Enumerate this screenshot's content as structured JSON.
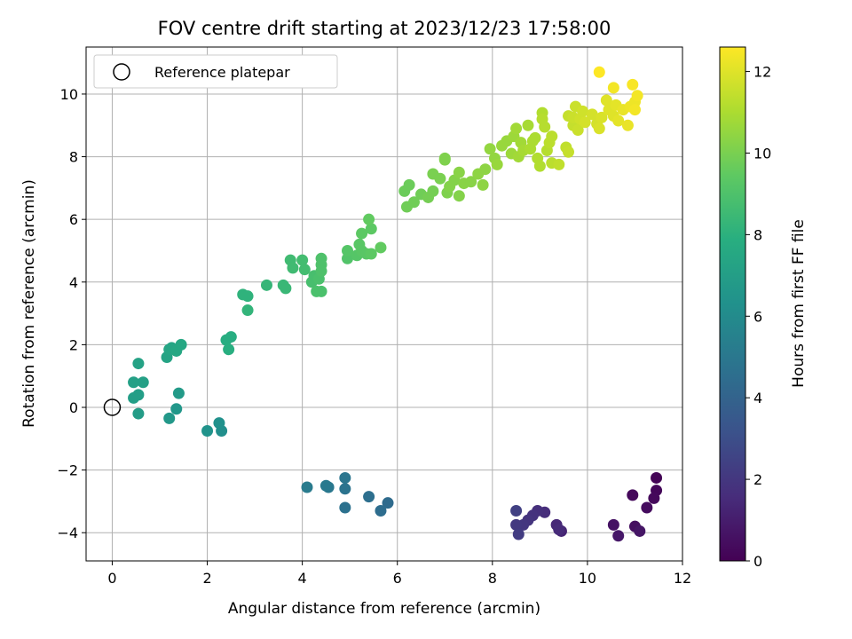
{
  "chart_data": {
    "type": "scatter",
    "title": "FOV centre drift starting at 2023/12/23 17:58:00",
    "xlabel": "Angular distance from reference (arcmin)",
    "ylabel": "Rotation from reference (arcmin)",
    "xlim": [
      -0.55,
      12.0
    ],
    "ylim": [
      -4.9,
      11.5
    ],
    "xticks": [
      0,
      2,
      4,
      6,
      8,
      10,
      12
    ],
    "yticks": [
      -4,
      -2,
      0,
      2,
      4,
      6,
      8,
      10
    ],
    "grid": true,
    "legend": {
      "placement": "top-left",
      "entries": [
        "Reference platepar"
      ]
    },
    "reference_point": {
      "x": 0,
      "y": 0
    },
    "colorbar": {
      "label": "Hours from first FF file",
      "colormap": "viridis",
      "range": [
        0,
        12.6
      ],
      "ticks": [
        0,
        2,
        4,
        6,
        8,
        10,
        12
      ]
    },
    "series": [
      {
        "values": [
          {
            "x": 10.95,
            "y": -2.8,
            "c": 0.3
          },
          {
            "x": 11.45,
            "y": -2.25,
            "c": 0.1
          },
          {
            "x": 11.45,
            "y": -2.65,
            "c": 0.2
          },
          {
            "x": 11.4,
            "y": -2.9,
            "c": 0.3
          },
          {
            "x": 11.25,
            "y": -3.2,
            "c": 0.4
          },
          {
            "x": 11.0,
            "y": -3.8,
            "c": 0.5
          },
          {
            "x": 10.55,
            "y": -3.75,
            "c": 0.6
          },
          {
            "x": 11.1,
            "y": -3.95,
            "c": 0.7
          },
          {
            "x": 10.65,
            "y": -4.1,
            "c": 0.8
          },
          {
            "x": 9.45,
            "y": -3.95,
            "c": 1.3
          },
          {
            "x": 9.35,
            "y": -3.75,
            "c": 1.4
          },
          {
            "x": 9.4,
            "y": -3.9,
            "c": 1.5
          },
          {
            "x": 9.1,
            "y": -3.35,
            "c": 1.6
          },
          {
            "x": 8.95,
            "y": -3.3,
            "c": 1.7
          },
          {
            "x": 8.85,
            "y": -3.45,
            "c": 1.8
          },
          {
            "x": 8.75,
            "y": -3.6,
            "c": 1.9
          },
          {
            "x": 8.65,
            "y": -3.75,
            "c": 2.0
          },
          {
            "x": 8.5,
            "y": -3.75,
            "c": 2.1
          },
          {
            "x": 8.55,
            "y": -4.05,
            "c": 2.2
          },
          {
            "x": 8.5,
            "y": -3.3,
            "c": 2.4
          },
          {
            "x": 5.8,
            "y": -3.05,
            "c": 4.4
          },
          {
            "x": 5.65,
            "y": -3.3,
            "c": 4.5
          },
          {
            "x": 5.4,
            "y": -2.85,
            "c": 4.6
          },
          {
            "x": 4.9,
            "y": -3.2,
            "c": 4.7
          },
          {
            "x": 4.9,
            "y": -2.6,
            "c": 4.8
          },
          {
            "x": 4.9,
            "y": -2.25,
            "c": 4.9
          },
          {
            "x": 4.55,
            "y": -2.55,
            "c": 5.0
          },
          {
            "x": 4.5,
            "y": -2.5,
            "c": 5.1
          },
          {
            "x": 4.1,
            "y": -2.55,
            "c": 5.2
          },
          {
            "x": 2.3,
            "y": -0.75,
            "c": 6.2
          },
          {
            "x": 2.25,
            "y": -0.5,
            "c": 6.3
          },
          {
            "x": 2.0,
            "y": -0.75,
            "c": 6.4
          },
          {
            "x": 1.35,
            "y": -0.05,
            "c": 6.6
          },
          {
            "x": 1.2,
            "y": -0.35,
            "c": 6.7
          },
          {
            "x": 1.4,
            "y": 0.45,
            "c": 6.8
          },
          {
            "x": 0.55,
            "y": -0.2,
            "c": 6.9
          },
          {
            "x": 0.55,
            "y": 0.4,
            "c": 7.0
          },
          {
            "x": 0.45,
            "y": 0.3,
            "c": 7.0
          },
          {
            "x": 0.65,
            "y": 0.8,
            "c": 7.1
          },
          {
            "x": 0.45,
            "y": 0.8,
            "c": 7.1
          },
          {
            "x": 0.55,
            "y": 1.4,
            "c": 7.2
          },
          {
            "x": 1.15,
            "y": 1.6,
            "c": 7.3
          },
          {
            "x": 1.2,
            "y": 1.85,
            "c": 7.4
          },
          {
            "x": 1.25,
            "y": 1.9,
            "c": 7.4
          },
          {
            "x": 1.35,
            "y": 1.8,
            "c": 7.5
          },
          {
            "x": 1.45,
            "y": 2.0,
            "c": 7.5
          },
          {
            "x": 2.4,
            "y": 2.15,
            "c": 7.8
          },
          {
            "x": 2.5,
            "y": 2.25,
            "c": 7.8
          },
          {
            "x": 2.45,
            "y": 1.85,
            "c": 7.9
          },
          {
            "x": 2.75,
            "y": 3.6,
            "c": 8.1
          },
          {
            "x": 2.85,
            "y": 3.55,
            "c": 8.1
          },
          {
            "x": 2.85,
            "y": 3.1,
            "c": 8.2
          },
          {
            "x": 3.25,
            "y": 3.9,
            "c": 8.3
          },
          {
            "x": 3.6,
            "y": 3.9,
            "c": 8.4
          },
          {
            "x": 3.65,
            "y": 3.8,
            "c": 8.4
          },
          {
            "x": 3.75,
            "y": 4.7,
            "c": 8.6
          },
          {
            "x": 3.8,
            "y": 4.45,
            "c": 8.6
          },
          {
            "x": 4.0,
            "y": 4.7,
            "c": 8.7
          },
          {
            "x": 4.05,
            "y": 4.4,
            "c": 8.7
          },
          {
            "x": 4.2,
            "y": 4.0,
            "c": 8.8
          },
          {
            "x": 4.25,
            "y": 4.2,
            "c": 8.8
          },
          {
            "x": 4.3,
            "y": 3.7,
            "c": 8.9
          },
          {
            "x": 4.4,
            "y": 3.7,
            "c": 8.9
          },
          {
            "x": 4.35,
            "y": 4.1,
            "c": 8.9
          },
          {
            "x": 4.4,
            "y": 4.55,
            "c": 9.0
          },
          {
            "x": 4.4,
            "y": 4.75,
            "c": 9.0
          },
          {
            "x": 4.4,
            "y": 4.35,
            "c": 9.0
          },
          {
            "x": 4.95,
            "y": 4.75,
            "c": 9.1
          },
          {
            "x": 4.95,
            "y": 5.0,
            "c": 9.2
          },
          {
            "x": 5.15,
            "y": 4.85,
            "c": 9.2
          },
          {
            "x": 5.25,
            "y": 5.0,
            "c": 9.3
          },
          {
            "x": 5.2,
            "y": 5.2,
            "c": 9.3
          },
          {
            "x": 5.35,
            "y": 4.9,
            "c": 9.3
          },
          {
            "x": 5.45,
            "y": 4.9,
            "c": 9.4
          },
          {
            "x": 5.25,
            "y": 5.55,
            "c": 9.4
          },
          {
            "x": 5.45,
            "y": 5.7,
            "c": 9.4
          },
          {
            "x": 5.4,
            "y": 6.0,
            "c": 9.5
          },
          {
            "x": 5.65,
            "y": 5.1,
            "c": 9.5
          },
          {
            "x": 6.15,
            "y": 6.9,
            "c": 9.7
          },
          {
            "x": 6.25,
            "y": 7.1,
            "c": 9.7
          },
          {
            "x": 6.2,
            "y": 6.4,
            "c": 9.8
          },
          {
            "x": 6.35,
            "y": 6.55,
            "c": 9.8
          },
          {
            "x": 6.5,
            "y": 6.8,
            "c": 9.8
          },
          {
            "x": 6.65,
            "y": 6.7,
            "c": 9.9
          },
          {
            "x": 6.75,
            "y": 6.9,
            "c": 9.9
          },
          {
            "x": 6.75,
            "y": 7.45,
            "c": 10.0
          },
          {
            "x": 6.9,
            "y": 7.3,
            "c": 10.0
          },
          {
            "x": 7.0,
            "y": 7.9,
            "c": 10.1
          },
          {
            "x": 7.0,
            "y": 7.95,
            "c": 10.1
          },
          {
            "x": 7.05,
            "y": 6.85,
            "c": 10.1
          },
          {
            "x": 7.1,
            "y": 7.05,
            "c": 10.2
          },
          {
            "x": 7.2,
            "y": 7.25,
            "c": 10.2
          },
          {
            "x": 7.3,
            "y": 6.75,
            "c": 10.2
          },
          {
            "x": 7.3,
            "y": 7.5,
            "c": 10.3
          },
          {
            "x": 7.4,
            "y": 7.15,
            "c": 10.3
          },
          {
            "x": 7.55,
            "y": 7.2,
            "c": 10.3
          },
          {
            "x": 7.7,
            "y": 7.45,
            "c": 10.4
          },
          {
            "x": 7.8,
            "y": 7.1,
            "c": 10.4
          },
          {
            "x": 7.85,
            "y": 7.6,
            "c": 10.4
          },
          {
            "x": 7.95,
            "y": 8.25,
            "c": 10.5
          },
          {
            "x": 8.05,
            "y": 7.95,
            "c": 10.5
          },
          {
            "x": 8.1,
            "y": 7.75,
            "c": 10.6
          },
          {
            "x": 8.2,
            "y": 8.35,
            "c": 10.6
          },
          {
            "x": 8.3,
            "y": 8.5,
            "c": 10.6
          },
          {
            "x": 8.4,
            "y": 8.1,
            "c": 10.7
          },
          {
            "x": 8.45,
            "y": 8.65,
            "c": 10.7
          },
          {
            "x": 8.5,
            "y": 8.9,
            "c": 10.8
          },
          {
            "x": 8.55,
            "y": 8.0,
            "c": 10.8
          },
          {
            "x": 8.6,
            "y": 8.45,
            "c": 10.8
          },
          {
            "x": 8.65,
            "y": 8.2,
            "c": 10.9
          },
          {
            "x": 8.75,
            "y": 9.0,
            "c": 10.9
          },
          {
            "x": 8.8,
            "y": 8.25,
            "c": 11.0
          },
          {
            "x": 8.85,
            "y": 8.5,
            "c": 11.0
          },
          {
            "x": 8.9,
            "y": 8.6,
            "c": 11.0
          },
          {
            "x": 8.95,
            "y": 7.95,
            "c": 11.1
          },
          {
            "x": 9.0,
            "y": 7.7,
            "c": 11.1
          },
          {
            "x": 9.05,
            "y": 9.4,
            "c": 11.1
          },
          {
            "x": 9.05,
            "y": 9.2,
            "c": 11.2
          },
          {
            "x": 9.1,
            "y": 8.95,
            "c": 11.2
          },
          {
            "x": 9.15,
            "y": 8.2,
            "c": 11.2
          },
          {
            "x": 9.2,
            "y": 8.45,
            "c": 11.3
          },
          {
            "x": 9.25,
            "y": 7.8,
            "c": 11.3
          },
          {
            "x": 9.25,
            "y": 8.65,
            "c": 11.3
          },
          {
            "x": 9.4,
            "y": 7.75,
            "c": 11.4
          },
          {
            "x": 9.55,
            "y": 8.3,
            "c": 11.4
          },
          {
            "x": 9.6,
            "y": 8.15,
            "c": 11.5
          },
          {
            "x": 9.6,
            "y": 9.3,
            "c": 11.5
          },
          {
            "x": 9.7,
            "y": 9.0,
            "c": 11.5
          },
          {
            "x": 9.7,
            "y": 9.25,
            "c": 11.6
          },
          {
            "x": 9.75,
            "y": 9.6,
            "c": 11.6
          },
          {
            "x": 9.8,
            "y": 8.85,
            "c": 11.6
          },
          {
            "x": 9.85,
            "y": 9.2,
            "c": 11.7
          },
          {
            "x": 9.9,
            "y": 9.45,
            "c": 11.7
          },
          {
            "x": 9.95,
            "y": 9.1,
            "c": 11.8
          },
          {
            "x": 10.1,
            "y": 9.35,
            "c": 11.8
          },
          {
            "x": 10.2,
            "y": 9.05,
            "c": 11.8
          },
          {
            "x": 10.25,
            "y": 8.9,
            "c": 11.9
          },
          {
            "x": 10.3,
            "y": 9.25,
            "c": 11.9
          },
          {
            "x": 10.4,
            "y": 9.8,
            "c": 12.0
          },
          {
            "x": 10.45,
            "y": 9.5,
            "c": 12.0
          },
          {
            "x": 10.55,
            "y": 9.3,
            "c": 12.0
          },
          {
            "x": 10.6,
            "y": 9.65,
            "c": 12.1
          },
          {
            "x": 10.65,
            "y": 9.15,
            "c": 12.1
          },
          {
            "x": 10.75,
            "y": 9.5,
            "c": 12.2
          },
          {
            "x": 10.85,
            "y": 9.0,
            "c": 12.2
          },
          {
            "x": 10.9,
            "y": 9.6,
            "c": 12.3
          },
          {
            "x": 11.0,
            "y": 9.75,
            "c": 12.3
          },
          {
            "x": 11.05,
            "y": 9.95,
            "c": 12.4
          },
          {
            "x": 11.0,
            "y": 9.5,
            "c": 12.4
          },
          {
            "x": 10.55,
            "y": 10.2,
            "c": 12.4
          },
          {
            "x": 10.95,
            "y": 10.3,
            "c": 12.5
          },
          {
            "x": 10.25,
            "y": 10.7,
            "c": 12.6
          }
        ]
      }
    ]
  }
}
